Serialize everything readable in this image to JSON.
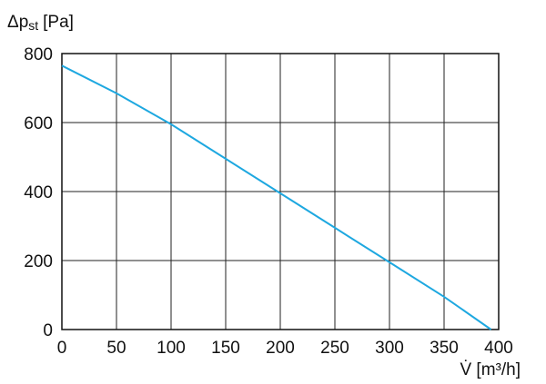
{
  "chart_data": {
    "type": "line",
    "ylabel": {
      "symbol": "Δp",
      "subscript": "st",
      "unit": "[Pa]"
    },
    "xlabel": "V̇ [m³/h]",
    "x": [
      0,
      50,
      100,
      150,
      200,
      250,
      300,
      350,
      393
    ],
    "series": [
      {
        "color": "#1ea8e0",
        "values": [
          765,
          685,
          595,
          495,
          395,
          295,
          195,
          95,
          0
        ]
      }
    ],
    "xlim": [
      0,
      400
    ],
    "xticks": [
      0,
      50,
      100,
      150,
      200,
      250,
      300,
      350,
      400
    ],
    "ylim": [
      0,
      800
    ],
    "yticks": [
      0,
      200,
      400,
      600,
      800
    ],
    "grid": true
  }
}
